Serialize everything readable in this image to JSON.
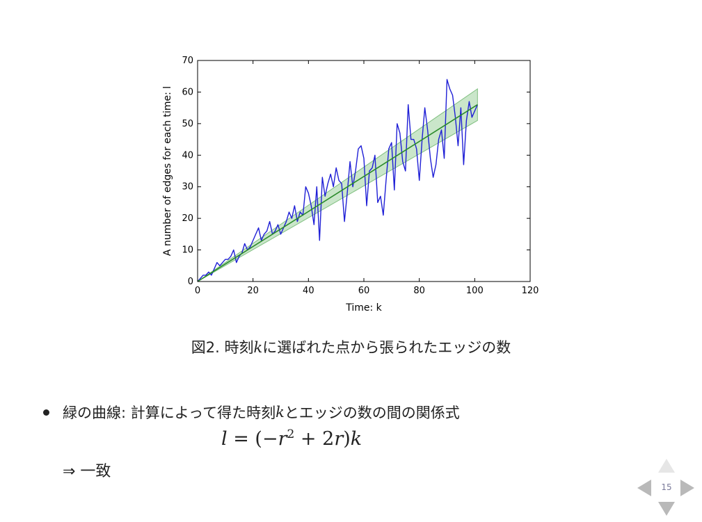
{
  "chart_data": {
    "type": "line",
    "xlabel": "Time: k",
    "ylabel": "A number of edges for each time: l",
    "xlim": [
      0,
      120
    ],
    "ylim": [
      0,
      70
    ],
    "xticks": [
      0,
      20,
      40,
      60,
      80,
      100,
      120
    ],
    "yticks": [
      0,
      10,
      20,
      30,
      40,
      50,
      60,
      70
    ],
    "grid": false,
    "colors": {
      "observed": "#1f1fd6",
      "fit": "#2a8a2a",
      "band": "#9fd19f"
    },
    "series": [
      {
        "style": "observed",
        "x": [
          0,
          1,
          2,
          3,
          4,
          5,
          6,
          7,
          8,
          9,
          10,
          11,
          12,
          13,
          14,
          15,
          16,
          17,
          18,
          19,
          20,
          21,
          22,
          23,
          24,
          25,
          26,
          27,
          28,
          29,
          30,
          31,
          32,
          33,
          34,
          35,
          36,
          37,
          38,
          39,
          40,
          41,
          42,
          43,
          44,
          45,
          46,
          47,
          48,
          49,
          50,
          51,
          52,
          53,
          54,
          55,
          56,
          57,
          58,
          59,
          60,
          61,
          62,
          63,
          64,
          65,
          66,
          67,
          68,
          69,
          70,
          71,
          72,
          73,
          74,
          75,
          76,
          77,
          78,
          79,
          80,
          81,
          82,
          83,
          84,
          85,
          86,
          87,
          88,
          89,
          90,
          91,
          92,
          93,
          94,
          95,
          96,
          97,
          98,
          99,
          100,
          101
        ],
        "y": [
          0,
          1,
          2,
          2,
          3,
          2,
          4,
          6,
          5,
          6,
          7,
          7,
          8,
          10,
          6,
          8,
          9,
          12,
          10,
          11,
          13,
          15,
          17,
          13,
          15,
          16,
          19,
          15,
          16,
          18,
          15,
          17,
          19,
          22,
          20,
          24,
          19,
          22,
          21,
          30,
          28,
          24,
          18,
          30,
          13,
          33,
          27,
          31,
          34,
          30,
          36,
          32,
          31,
          19,
          28,
          38,
          30,
          35,
          42,
          43,
          39,
          24,
          35,
          36,
          40,
          25,
          27,
          21,
          32,
          42,
          44,
          29,
          50,
          47,
          38,
          35,
          56,
          45,
          45,
          42,
          32,
          45,
          55,
          48,
          39,
          33,
          37,
          45,
          48,
          39,
          64,
          61,
          59,
          52,
          43,
          55,
          37,
          51,
          57,
          52,
          54,
          56
        ]
      },
      {
        "style": "fit",
        "x": [
          0,
          101
        ],
        "y": [
          0,
          56
        ]
      }
    ],
    "band": {
      "x": [
        0,
        101
      ],
      "lower": [
        0,
        51
      ],
      "upper": [
        0,
        61
      ]
    }
  },
  "caption": {
    "prefix": "図2. 時刻",
    "var": "k",
    "suffix": "に選ばれた点から張られたエッジの数"
  },
  "bullet": {
    "prefix": "緑の曲線: 計算によって得た時刻",
    "var": "k",
    "suffix": "とエッジの数の間の関係式"
  },
  "formula": {
    "lhs": "l",
    "eq": " = (−",
    "r": "r",
    "exp": "2",
    "rest": " + 2",
    "r2": "r",
    "close": ")",
    "k": "k"
  },
  "conclusion": "⇒ 一致",
  "nav": {
    "page": "15"
  }
}
